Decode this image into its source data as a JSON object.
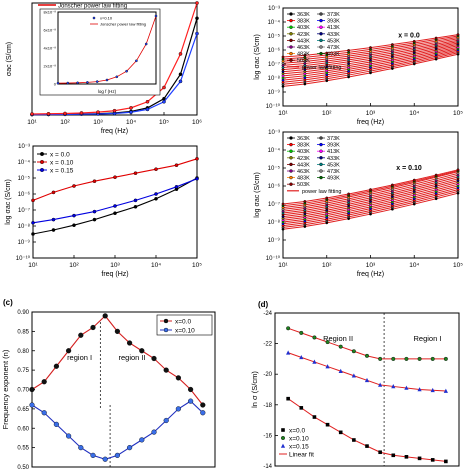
{
  "chart_data": [
    {
      "id": "top-left",
      "type": "line",
      "xlabel": "freq (Hz)",
      "ylabel": "σac (S/cm)",
      "xscale": "log",
      "xlim": [
        10,
        1000000
      ],
      "ylim": [
        0,
        11
      ],
      "xticks": [
        "10¹",
        "10²",
        "10³",
        "10⁴",
        "10⁵",
        "10⁶"
      ],
      "legend": "top-left",
      "legend_entries": [
        "Jonscher power law fitting"
      ],
      "series": [
        {
          "name": "",
          "color": "#000000",
          "marker": "circle",
          "x": [
            10,
            31.6,
            100,
            316,
            1000,
            3162,
            10000,
            31623,
            100000,
            316228,
            1000000
          ],
          "y": [
            0.05,
            0.06,
            0.08,
            0.1,
            0.13,
            0.2,
            0.35,
            0.7,
            1.6,
            4.0,
            9.5
          ]
        },
        {
          "name": "",
          "color": "#1f3fff",
          "marker": "circle",
          "x": [
            10,
            31.6,
            100,
            316,
            1000,
            3162,
            10000,
            31623,
            100000,
            316228,
            1000000
          ],
          "y": [
            0.04,
            0.05,
            0.06,
            0.08,
            0.1,
            0.15,
            0.27,
            0.55,
            1.3,
            3.3,
            8.0
          ]
        },
        {
          "name": "",
          "color": "#ff2020",
          "marker": "circle",
          "x": [
            10,
            31.6,
            100,
            316,
            1000,
            3162,
            10000,
            31623,
            100000,
            316228,
            1000000
          ],
          "y": [
            0.1,
            0.12,
            0.15,
            0.2,
            0.28,
            0.42,
            0.7,
            1.3,
            2.7,
            6.0,
            11
          ]
        }
      ],
      "inset": {
        "ylabel": "σac (S/cm)",
        "xlabel": "log f (Hz)",
        "legend_entries": [
          "x=0.10",
          "Jonscher power law fitting"
        ],
        "yticks": [
          "0",
          "2x10⁻⁸",
          "4x10⁻⁸",
          "6x10⁻⁸",
          "8x10⁻⁸"
        ],
        "x": [
          1,
          1.5,
          2,
          2.5,
          3,
          3.5,
          4,
          4.5,
          5,
          5.5,
          6
        ],
        "y": [
          0.1,
          0.12,
          0.15,
          0.2,
          0.3,
          0.5,
          0.9,
          1.6,
          2.9,
          5.0,
          8.5
        ]
      }
    },
    {
      "id": "top-right",
      "type": "line",
      "xlabel": "freq (Hz)",
      "ylabel": "log σac (S/cm)",
      "annotation": "x = 0.0",
      "xscale": "log",
      "xlim": [
        10,
        100000
      ],
      "ylim": [
        -10,
        -3
      ],
      "xticks": [
        "10¹",
        "10²",
        "10³",
        "10⁴",
        "10⁵"
      ],
      "yticks": [
        "10⁻¹⁰",
        "10⁻⁹",
        "10⁻⁸",
        "10⁻⁷",
        "10⁻⁶",
        "10⁻⁵",
        "10⁻⁴",
        "10⁻³"
      ],
      "legend": "top-left",
      "legend_entries": [
        "363K",
        "373K",
        "383K",
        "393K",
        "403K",
        "413K",
        "423K",
        "433K",
        "443K",
        "453K",
        "463K",
        "473K",
        "483K",
        "493K",
        "503K",
        "power law fitting"
      ],
      "curves": {
        "names": [
          "363K",
          "373K",
          "383K",
          "393K",
          "403K",
          "413K",
          "423K",
          "433K",
          "443K",
          "453K",
          "463K",
          "473K",
          "483K",
          "493K",
          "503K"
        ],
        "colors": [
          "#000000",
          "#444444",
          "#ff0000",
          "#0000ff",
          "#00c000",
          "#ff00ff",
          "#808000",
          "#000080",
          "#800000",
          "#008080",
          "#800080",
          "#808080",
          "#ff8000",
          "#006400",
          "#8b0000"
        ],
        "log_sigma_at_10Hz": [
          -8.6,
          -8.45,
          -8.3,
          -8.15,
          -8.0,
          -7.85,
          -7.7,
          -7.55,
          -7.4,
          -7.25,
          -7.1,
          -6.95,
          -6.8,
          -6.65,
          -6.5
        ],
        "log_sigma_at_100kHz": [
          -6.3,
          -6.2,
          -6.1,
          -6.0,
          -5.9,
          -5.8,
          -5.7,
          -5.6,
          -5.5,
          -5.4,
          -5.3,
          -5.2,
          -5.1,
          -5.0,
          -4.9
        ]
      }
    },
    {
      "id": "middle-left",
      "type": "line",
      "xlabel": "freq (Hz)",
      "ylabel": "log σac (S/cm)",
      "xscale": "log",
      "xlim": [
        10,
        100000
      ],
      "ylim": [
        -10,
        -3
      ],
      "xticks": [
        "10¹",
        "10²",
        "10³",
        "10⁴",
        "10⁵"
      ],
      "yticks": [
        "10⁻¹⁰",
        "10⁻⁹",
        "10⁻⁸",
        "10⁻⁷",
        "10⁻⁶",
        "10⁻⁵",
        "10⁻⁴",
        "10⁻³"
      ],
      "legend": "top-left",
      "series": [
        {
          "name": "x = 0.0",
          "color": "#000000",
          "x": [
            10,
            31.6,
            100,
            316,
            1000,
            3162,
            10000,
            31623,
            100000
          ],
          "y": [
            -8.5,
            -8.25,
            -7.95,
            -7.6,
            -7.2,
            -6.8,
            -6.3,
            -5.7,
            -5.0
          ]
        },
        {
          "name": "x = 0.10",
          "color": "#e00000",
          "x": [
            10,
            31.6,
            100,
            316,
            1000,
            3162,
            10000,
            31623,
            100000
          ],
          "y": [
            -6.4,
            -5.9,
            -5.5,
            -5.2,
            -4.95,
            -4.7,
            -4.45,
            -4.2,
            -3.8
          ]
        },
        {
          "name": "x = 0.15",
          "color": "#0000e0",
          "x": [
            10,
            31.6,
            100,
            316,
            1000,
            3162,
            10000,
            31623,
            100000
          ],
          "y": [
            -7.8,
            -7.6,
            -7.35,
            -7.1,
            -6.75,
            -6.4,
            -6.0,
            -5.55,
            -5.05
          ]
        }
      ]
    },
    {
      "id": "middle-right",
      "type": "line",
      "xlabel": "freq (Hz)",
      "ylabel": "log σac (S/cm)",
      "annotation": "x = 0.10",
      "xscale": "log",
      "xlim": [
        10,
        100000
      ],
      "ylim": [
        -10,
        -3
      ],
      "xticks": [
        "10¹",
        "10²",
        "10³",
        "10⁴",
        "10⁵"
      ],
      "yticks": [
        "10⁻¹⁰",
        "10⁻⁹",
        "10⁻⁸",
        "10⁻⁷",
        "10⁻⁶",
        "10⁻⁵",
        "10⁻⁴",
        "10⁻³"
      ],
      "legend": "top-left",
      "legend_entries": [
        "363K",
        "373K",
        "383K",
        "393K",
        "403K",
        "413K",
        "423K",
        "433K",
        "443K",
        "453K",
        "463K",
        "473K",
        "483K",
        "493K",
        "503K",
        "power law fitting"
      ],
      "curves": {
        "names": [
          "363K",
          "373K",
          "383K",
          "393K",
          "403K",
          "413K",
          "423K",
          "433K",
          "443K",
          "453K",
          "463K",
          "473K",
          "483K",
          "493K",
          "503K"
        ],
        "colors": [
          "#000000",
          "#444444",
          "#ff0000",
          "#0000ff",
          "#00c000",
          "#ff00ff",
          "#808000",
          "#000080",
          "#800000",
          "#008080",
          "#800080",
          "#808080",
          "#ff8000",
          "#006400",
          "#8b0000"
        ],
        "log_sigma_at_10Hz": [
          -8.4,
          -8.3,
          -8.2,
          -8.1,
          -8.0,
          -7.9,
          -7.8,
          -7.7,
          -7.6,
          -7.5,
          -7.4,
          -7.3,
          -7.2,
          -7.1,
          -7.0
        ],
        "log_sigma_at_100kHz": [
          -6.4,
          -6.3,
          -6.2,
          -6.1,
          -6.0,
          -5.9,
          -5.8,
          -5.7,
          -5.6,
          -5.5,
          -5.4,
          -5.3,
          -5.2,
          -5.15,
          -5.1
        ]
      }
    },
    {
      "id": "panel-c",
      "type": "line",
      "panel_label": "(c)",
      "ylabel": "Frequency exponent (n)",
      "xlim": [
        0,
        15
      ],
      "ylim": [
        0.5,
        0.9
      ],
      "yticks": [
        "0.50",
        "0.55",
        "0.60",
        "0.65",
        "0.70",
        "0.75",
        "0.80",
        "0.85",
        "0.90"
      ],
      "legend": "top-right",
      "annotations": [
        "region I",
        "region II"
      ],
      "series": [
        {
          "name": "x=0.0",
          "color": "#d42020",
          "marker": "circle",
          "x": [
            0,
            1,
            2,
            3,
            4,
            5,
            6,
            7,
            8,
            9,
            10,
            11,
            12,
            13,
            14
          ],
          "y": [
            0.7,
            0.72,
            0.76,
            0.8,
            0.84,
            0.86,
            0.89,
            0.85,
            0.82,
            0.8,
            0.78,
            0.75,
            0.73,
            0.7,
            0.66
          ]
        },
        {
          "name": "x=0.10",
          "color": "#2030c0",
          "marker": "circle",
          "x": [
            0,
            1,
            2,
            3,
            4,
            5,
            6,
            7,
            8,
            9,
            10,
            11,
            12,
            13,
            14
          ],
          "y": [
            0.66,
            0.64,
            0.61,
            0.58,
            0.55,
            0.53,
            0.52,
            0.53,
            0.55,
            0.57,
            0.59,
            0.62,
            0.65,
            0.67,
            0.64
          ]
        }
      ]
    },
    {
      "id": "panel-d",
      "type": "scatter",
      "panel_label": "(d)",
      "ylabel": "ln σ (S/cm)",
      "xlim": [
        0,
        14
      ],
      "ylim": [
        -24,
        -14
      ],
      "yticks": [
        "-14",
        "-16",
        "-18",
        "-20",
        "-22",
        "-24"
      ],
      "legend": "bottom-left",
      "annotations": [
        "Region II",
        "Region I"
      ],
      "linear_fit_label": "Linear fit",
      "series": [
        {
          "name": "x=0.0",
          "color": "#000000",
          "marker": "square",
          "x": [
            1,
            2,
            3,
            4,
            5,
            6,
            7,
            8,
            9,
            10,
            11,
            12,
            13
          ],
          "y": [
            -19.6,
            -20.2,
            -20.8,
            -21.3,
            -21.8,
            -22.3,
            -22.7,
            -23.1,
            -23.3,
            -23.4,
            -23.5,
            -23.6,
            -23.7
          ]
        },
        {
          "name": "x=0.10",
          "color": "#208020",
          "marker": "circle",
          "x": [
            1,
            2,
            3,
            4,
            5,
            6,
            7,
            8,
            9,
            10,
            11,
            12,
            13
          ],
          "y": [
            -15.0,
            -15.3,
            -15.6,
            -15.9,
            -16.2,
            -16.5,
            -16.8,
            -17.0,
            -17.0,
            -17.0,
            -17.0,
            -17.0,
            -17.0
          ]
        },
        {
          "name": "x=0.15",
          "color": "#2030d0",
          "marker": "triangle",
          "x": [
            1,
            2,
            3,
            4,
            5,
            6,
            7,
            8,
            9,
            10,
            11,
            12,
            13
          ],
          "y": [
            -16.6,
            -16.9,
            -17.2,
            -17.5,
            -17.8,
            -18.1,
            -18.4,
            -18.7,
            -18.8,
            -18.9,
            -19.0,
            -19.05,
            -19.1
          ]
        }
      ]
    }
  ]
}
